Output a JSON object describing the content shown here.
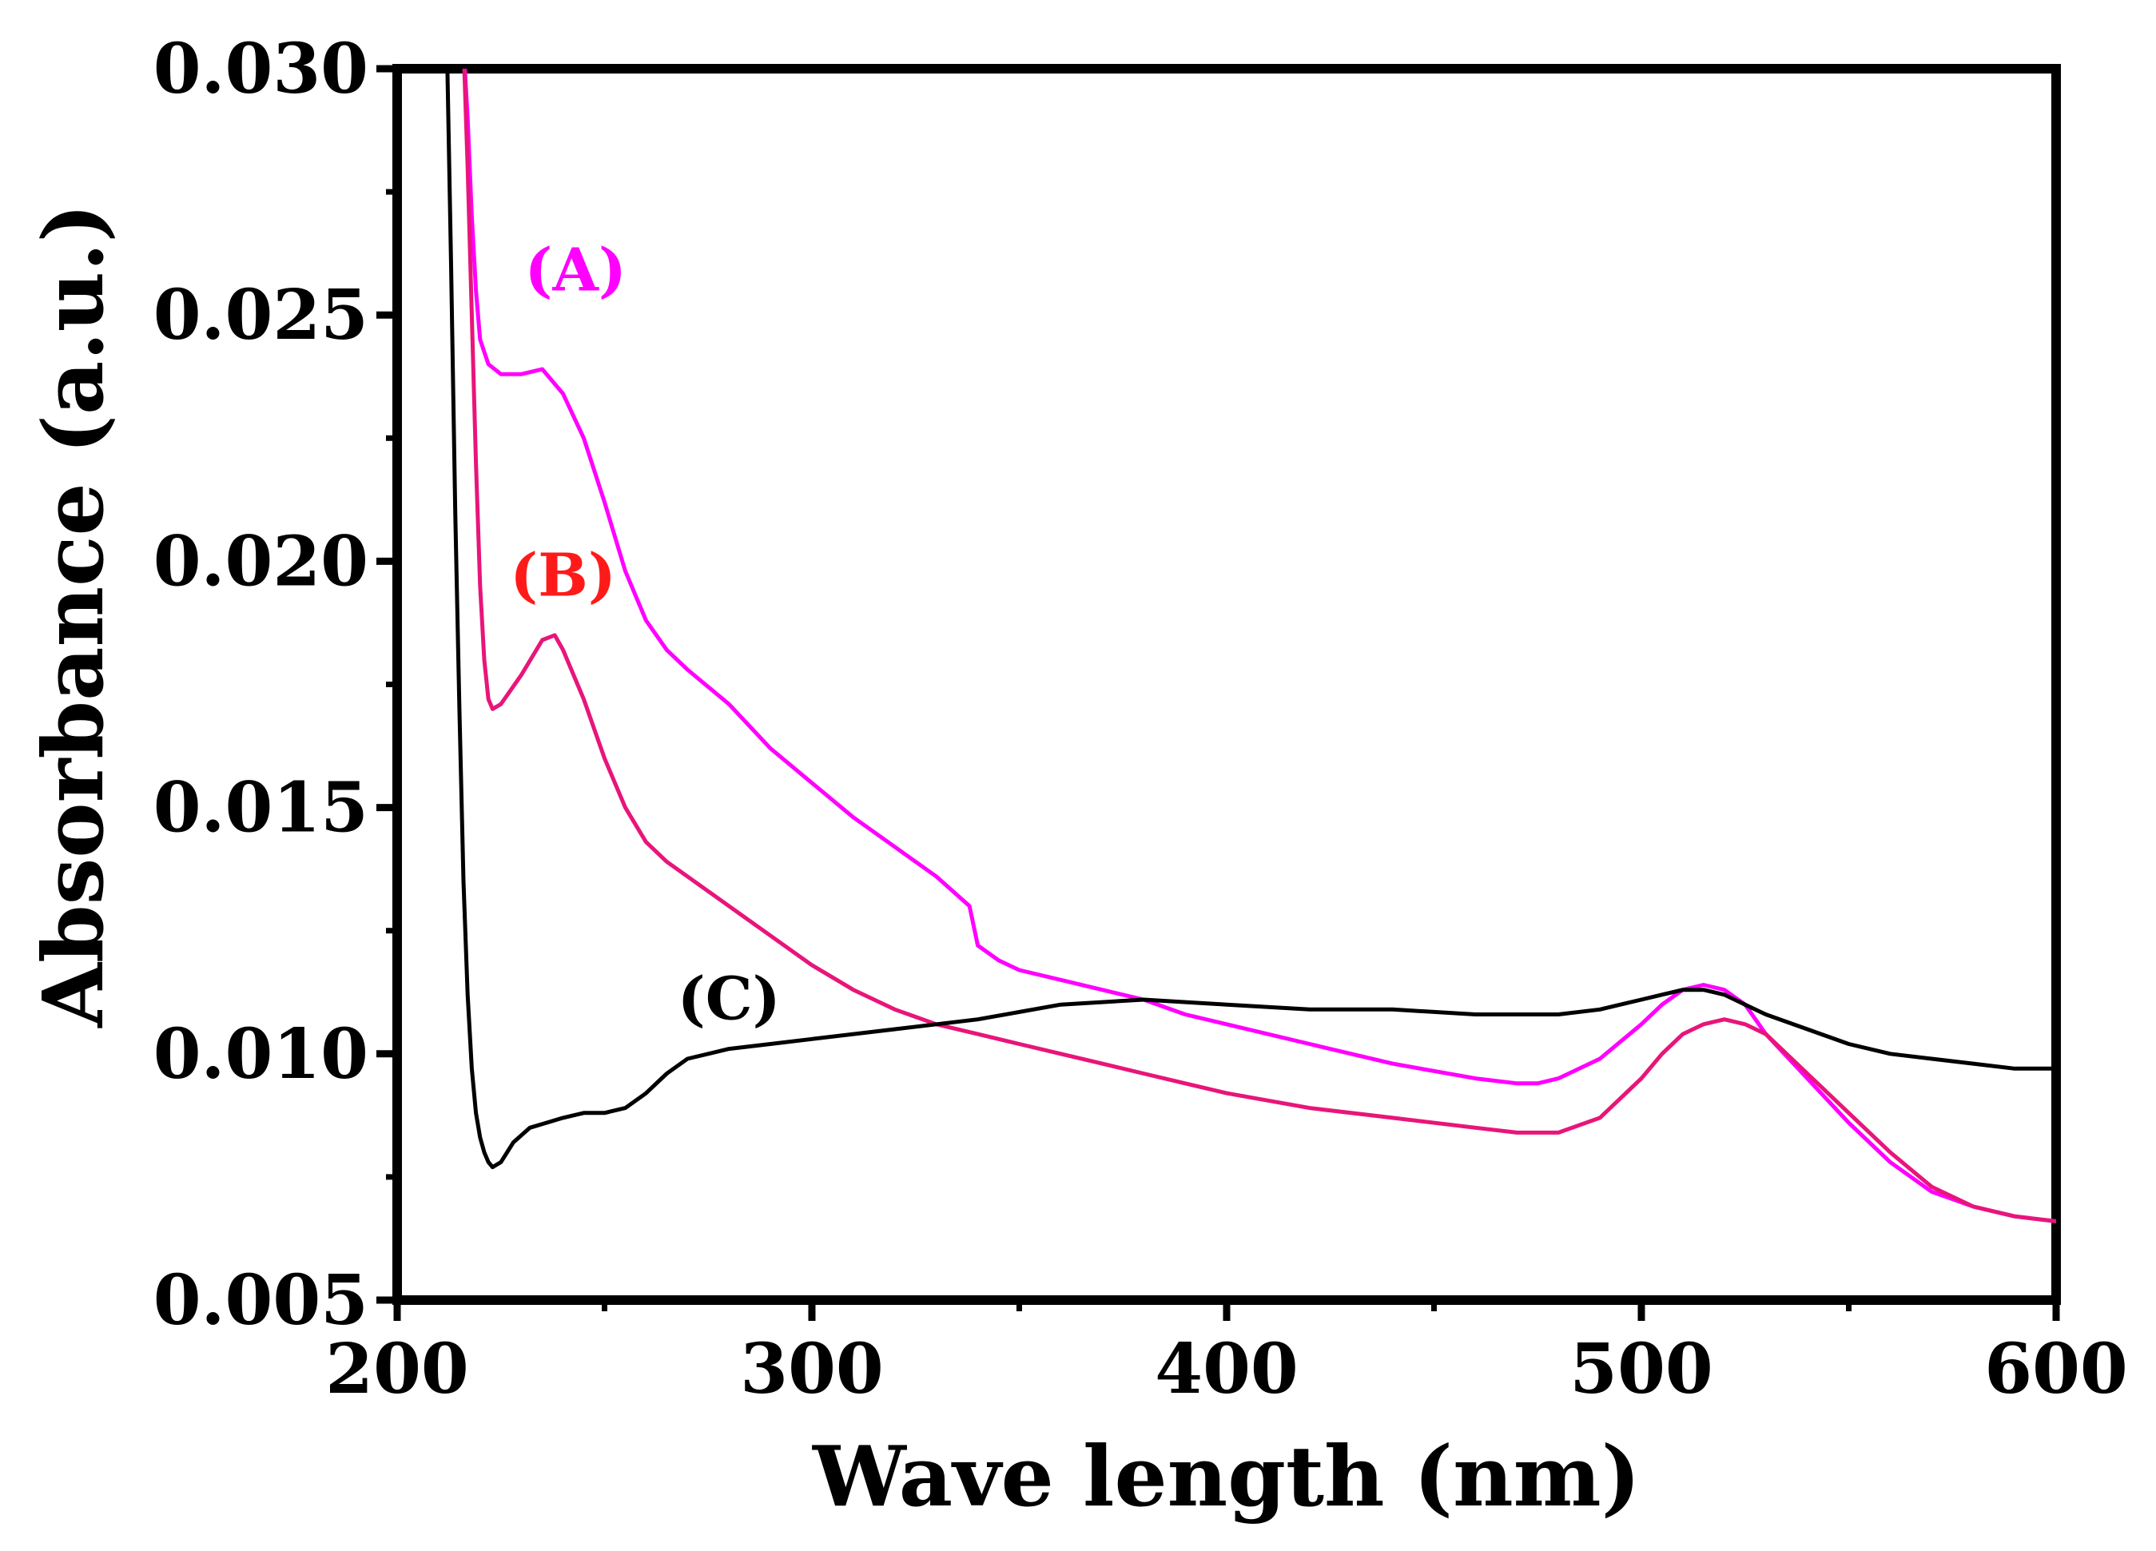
{
  "chart_data": {
    "type": "line",
    "title": "",
    "xlabel": "Wave length (nm)",
    "ylabel": "Absorbance (a.u.)",
    "xlim": [
      200,
      600
    ],
    "ylim": [
      0.005,
      0.03
    ],
    "xticks": [
      200,
      300,
      400,
      500,
      600
    ],
    "xtick_labels": [
      "200",
      "300",
      "400",
      "500",
      "600"
    ],
    "yticks": [
      0.005,
      0.01,
      0.015,
      0.02,
      0.025,
      0.03
    ],
    "ytick_labels": [
      "0.005",
      "0.010",
      "0.015",
      "0.020",
      "0.025",
      "0.030"
    ],
    "grid": false,
    "series": [
      {
        "name": "(A)",
        "color": "#ff00ff",
        "label_at": [
          243,
          0.0255
        ],
        "x": [
          216,
          217,
          218,
          219,
          220,
          222,
          225,
          230,
          235,
          240,
          245,
          250,
          255,
          260,
          265,
          270,
          280,
          290,
          300,
          310,
          320,
          330,
          338,
          339,
          340,
          345,
          350,
          360,
          370,
          380,
          390,
          400,
          420,
          440,
          460,
          470,
          475,
          480,
          490,
          500,
          505,
          510,
          515,
          520,
          525,
          530,
          540,
          550,
          560,
          570,
          580,
          590,
          600
        ],
        "y": [
          0.0305,
          0.029,
          0.027,
          0.0255,
          0.0245,
          0.024,
          0.0238,
          0.0238,
          0.0239,
          0.0234,
          0.0225,
          0.0212,
          0.0198,
          0.0188,
          0.0182,
          0.0178,
          0.0171,
          0.0162,
          0.0155,
          0.0148,
          0.0142,
          0.0136,
          0.013,
          0.0126,
          0.0122,
          0.0119,
          0.0117,
          0.0115,
          0.0113,
          0.0111,
          0.0108,
          0.0106,
          0.0102,
          0.0098,
          0.0095,
          0.0094,
          0.0094,
          0.0095,
          0.0099,
          0.0106,
          0.011,
          0.0113,
          0.0114,
          0.0113,
          0.011,
          0.0104,
          0.0095,
          0.0086,
          0.0078,
          0.0072,
          0.0069,
          0.0067,
          0.0066
        ]
      },
      {
        "name": "(B)",
        "color": "#e8157a",
        "label_color": "#ff1a1a",
        "label_at": [
          240,
          0.0193
        ],
        "x": [
          216,
          217,
          218,
          219,
          220,
          221,
          222,
          223,
          225,
          230,
          235,
          238,
          240,
          245,
          250,
          255,
          260,
          265,
          270,
          280,
          290,
          300,
          310,
          320,
          330,
          340,
          350,
          360,
          370,
          380,
          390,
          400,
          420,
          440,
          460,
          470,
          480,
          490,
          500,
          505,
          510,
          515,
          520,
          525,
          530,
          540,
          550,
          560,
          570,
          580,
          590,
          600
        ],
        "y": [
          0.0305,
          0.028,
          0.025,
          0.022,
          0.0195,
          0.018,
          0.0172,
          0.017,
          0.0171,
          0.0177,
          0.0184,
          0.0185,
          0.0182,
          0.0172,
          0.016,
          0.015,
          0.0143,
          0.0139,
          0.0136,
          0.013,
          0.0124,
          0.0118,
          0.0113,
          0.0109,
          0.0106,
          0.0104,
          0.0102,
          0.01,
          0.0098,
          0.0096,
          0.0094,
          0.0092,
          0.0089,
          0.0087,
          0.0085,
          0.0084,
          0.0084,
          0.0087,
          0.0095,
          0.01,
          0.0104,
          0.0106,
          0.0107,
          0.0106,
          0.0104,
          0.0096,
          0.0088,
          0.008,
          0.0073,
          0.0069,
          0.0067,
          0.0066
        ]
      },
      {
        "name": "(C)",
        "color": "#000000",
        "label_at": [
          280,
          0.0107
        ],
        "x": [
          212,
          213,
          214,
          215,
          216,
          217,
          218,
          219,
          220,
          221,
          222,
          223,
          225,
          228,
          232,
          236,
          240,
          245,
          250,
          255,
          260,
          265,
          270,
          280,
          290,
          300,
          320,
          340,
          360,
          380,
          400,
          420,
          440,
          460,
          480,
          490,
          500,
          505,
          510,
          515,
          520,
          525,
          530,
          540,
          550,
          560,
          570,
          580,
          590,
          600
        ],
        "y": [
          0.0305,
          0.026,
          0.021,
          0.017,
          0.0135,
          0.0112,
          0.0097,
          0.0088,
          0.0083,
          0.008,
          0.0078,
          0.0077,
          0.0078,
          0.0082,
          0.0085,
          0.0086,
          0.0087,
          0.0088,
          0.0088,
          0.0089,
          0.0092,
          0.0096,
          0.0099,
          0.0101,
          0.0102,
          0.0103,
          0.0105,
          0.0107,
          0.011,
          0.0111,
          0.011,
          0.0109,
          0.0109,
          0.0108,
          0.0108,
          0.0109,
          0.0111,
          0.0112,
          0.0113,
          0.0113,
          0.0112,
          0.011,
          0.0108,
          0.0105,
          0.0102,
          0.01,
          0.0099,
          0.0098,
          0.0097,
          0.0097
        ]
      }
    ]
  }
}
